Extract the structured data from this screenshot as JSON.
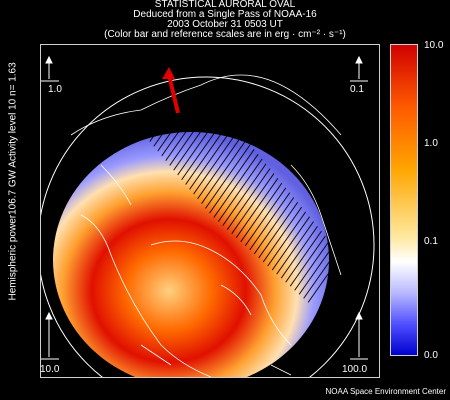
{
  "title": {
    "line1": "STATISTICAL AURORAL OVAL",
    "line2": "Deduced from a Single Pass of NOAA-16",
    "line3": "2003 October 31 0503 UT",
    "line4": "(Color bar and reference scales are in erg · cm⁻² · s⁻¹)"
  },
  "side_label": "Hemispheric power106.7 GW   Activity level 10   n= 1.63",
  "reference_scales": {
    "top_left": "1.0",
    "top_right": "0.1",
    "bottom_left": "10.0",
    "bottom_right": "100.0"
  },
  "color_bar": {
    "top": "10.0",
    "upper_mid": "1.0",
    "lower_mid": "0.1",
    "bottom": "0.0"
  },
  "credit": "NOAA Space Environment Center",
  "colors": {
    "background": "#000000",
    "grid": "#ffffff",
    "sun_arrow": "#e00000",
    "high": "#d00000",
    "mid": "#ffa500",
    "low": "#5050ff"
  }
}
